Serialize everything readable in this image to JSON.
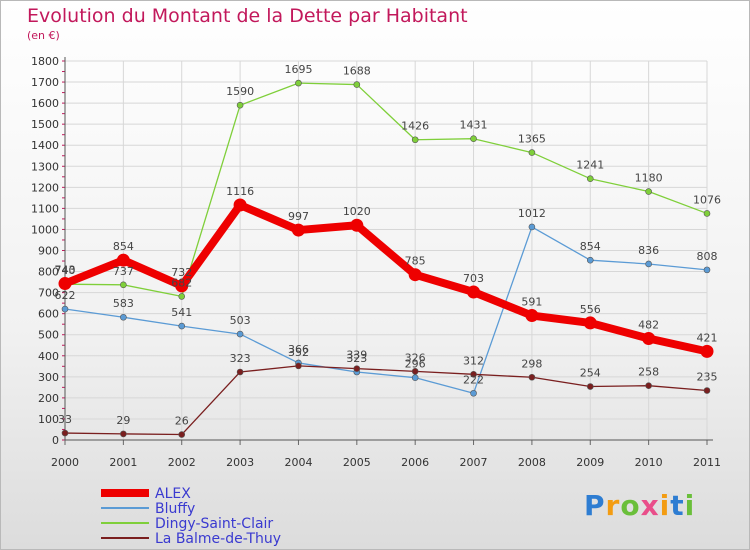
{
  "chart_data": {
    "type": "line",
    "title": "Evolution du Montant de la Dette par Habitant",
    "subtitle": "(en €)",
    "x": [
      "2000",
      "2001",
      "2002",
      "2003",
      "2004",
      "2005",
      "2006",
      "2007",
      "2008",
      "2009",
      "2010",
      "2011"
    ],
    "yticks": [
      0,
      100,
      200,
      300,
      400,
      500,
      600,
      700,
      800,
      900,
      1000,
      1100,
      1200,
      1300,
      1400,
      1500,
      1600,
      1700,
      1800
    ],
    "ylim": [
      0,
      1800
    ],
    "grid": true,
    "legend_position": "bottom-left",
    "series": [
      {
        "name": "ALEX",
        "color": "#ee0000",
        "values": [
          743,
          854,
          732,
          1116,
          997,
          1020,
          785,
          703,
          591,
          556,
          482,
          421
        ]
      },
      {
        "name": "Bluffy",
        "color": "#5b9bd5",
        "values": [
          622,
          583,
          541,
          503,
          366,
          323,
          296,
          222,
          1012,
          854,
          836,
          808
        ]
      },
      {
        "name": "Dingy-Saint-Clair",
        "color": "#7fcf3a",
        "values": [
          740,
          737,
          682,
          1590,
          1695,
          1688,
          1426,
          1431,
          1365,
          1241,
          1180,
          1076
        ]
      },
      {
        "name": "La Balme-de-Thuy",
        "color": "#7a1f1f",
        "values": [
          33,
          29,
          26,
          323,
          352,
          339,
          326,
          312,
          298,
          254,
          258,
          235
        ]
      }
    ]
  },
  "brand": {
    "letters": [
      "P",
      "r",
      "o",
      "x",
      "i",
      "t",
      "i"
    ],
    "colors": [
      "#2e7dd2",
      "#f39c12",
      "#6abf3a",
      "#e94e8a",
      "#f39c12",
      "#2e7dd2",
      "#6abf3a"
    ]
  }
}
